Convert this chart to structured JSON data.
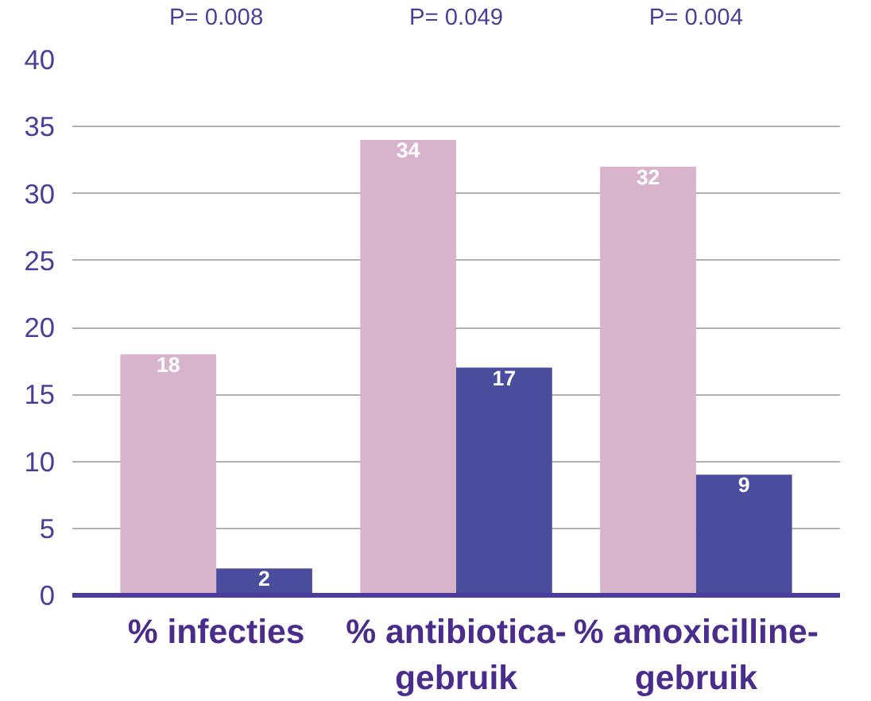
{
  "chart_data": {
    "type": "bar",
    "categories": [
      "% infecties",
      "% antibiotica-\ngebruik",
      "% amoxicilline-\ngebruik"
    ],
    "series": [
      {
        "color": "#d8b4cc",
        "values": [
          18,
          34,
          32
        ]
      },
      {
        "color": "#4a4c9e",
        "values": [
          2,
          17,
          9
        ]
      }
    ],
    "ylim": [
      0,
      40
    ],
    "yticks": [
      0,
      5,
      10,
      15,
      20,
      25,
      30,
      35,
      40
    ],
    "grid": "y",
    "data_labels": true,
    "annotations": [
      "P= 0.008",
      "P= 0.049",
      "P= 0.004"
    ]
  }
}
